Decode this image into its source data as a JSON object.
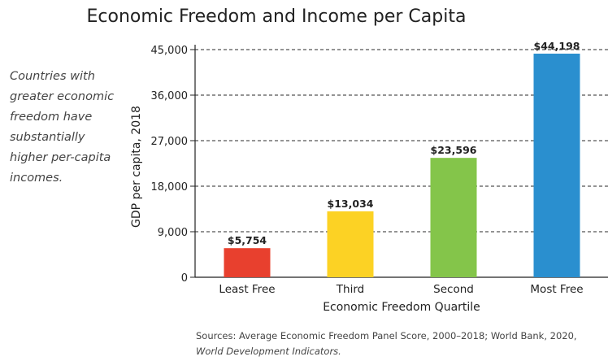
{
  "side_note": "Countries with greater economic freedom have substantially higher per-capita incomes.",
  "sources": {
    "text": "Sources: Average Economic Freedom Panel Score, 2000–2018; World Bank, 2020,",
    "italic": "World Development Indicators."
  },
  "chart_data": {
    "type": "bar",
    "title": "Economic Freedom and Income per Capita",
    "xlabel": "Economic Freedom Quartile",
    "ylabel": "GDP per capita, 2018",
    "categories": [
      "Least Free",
      "Third",
      "Second",
      "Most Free"
    ],
    "values": [
      5754,
      13034,
      23596,
      44198
    ],
    "data_labels": [
      "$5,754",
      "$13,034",
      "$23,596",
      "$44,198"
    ],
    "colors": [
      "#e8402e",
      "#fcd224",
      "#84c54a",
      "#2a8fcf"
    ],
    "ylim": [
      0,
      45000
    ],
    "yticks": [
      0,
      9000,
      18000,
      27000,
      36000,
      45000
    ],
    "ytick_labels": [
      "0",
      "9,000",
      "18,000",
      "27,000",
      "36,000",
      "45,000"
    ],
    "grid": "horizontal dashed",
    "legend": "none"
  }
}
